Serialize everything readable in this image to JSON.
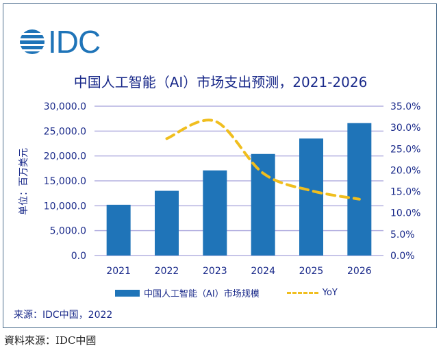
{
  "logo_text": "IDC",
  "chart_data": {
    "type": "bar",
    "title": "中国人工智能（AI）市场支出预测，2021-2026",
    "ylabel": "单位：百万美元",
    "categories": [
      "2021",
      "2022",
      "2023",
      "2024",
      "2025",
      "2026"
    ],
    "series": [
      {
        "name": "中国人工智能（AI）市场规模",
        "type": "bar",
        "axis": "left",
        "color": "#1f74b8",
        "values": [
          10200,
          13000,
          17100,
          20400,
          23500,
          26600
        ]
      },
      {
        "name": "YoY",
        "type": "line",
        "style": "dashed",
        "axis": "right",
        "color": "#f0be1e",
        "values": [
          null,
          27.4,
          31.5,
          19.3,
          15.2,
          13.2
        ]
      }
    ],
    "ylim": [
      0,
      30000
    ],
    "y2lim": [
      0,
      35
    ],
    "yticks": [
      "0.0",
      "5,000.0",
      "10,000.0",
      "15,000.0",
      "20,000.0",
      "25,000.0",
      "30,000.0"
    ],
    "y2ticks": [
      "0.0%",
      "5.0%",
      "10.0%",
      "15.0%",
      "20.0%",
      "25.0%",
      "30.0%",
      "35.0%"
    ],
    "grid": true,
    "legend": "bottom"
  },
  "source": "来源：IDC中国，2022",
  "footer": "資料來源：IDC中國"
}
